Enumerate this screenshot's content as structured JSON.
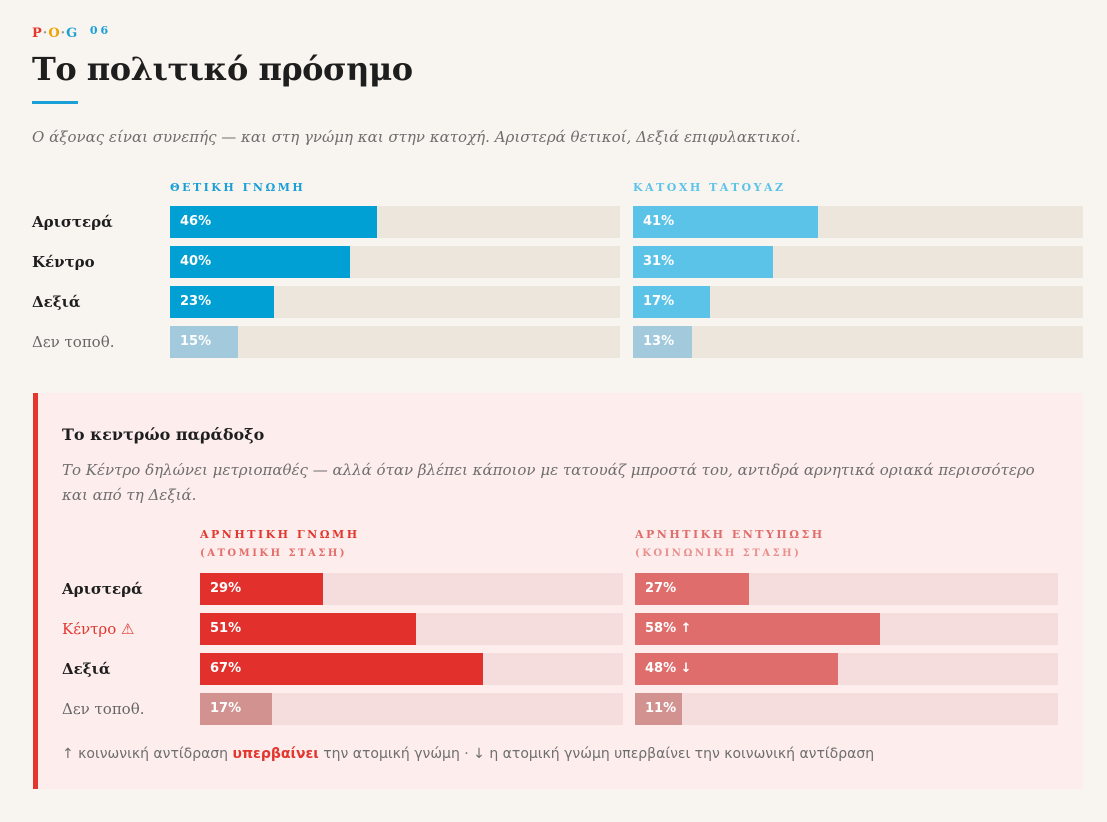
{
  "kicker": {
    "p": "P",
    "o": "O",
    "g": "G",
    "dot": "·",
    "num": "06"
  },
  "title": "Το πολιτικό πρόσημο",
  "subtitle": "Ο άξονας είναι συνεπής — και στη γνώμη και στην κατοχή. Αριστερά θετικοί, Δεξιά επιφυλακτικοί.",
  "chart_data": [
    {
      "type": "bar",
      "orientation": "horizontal",
      "title": "ΘΕΤΙΚΗ ΓΝΩΜΗ",
      "categories": [
        "Αριστερά",
        "Κέντρο",
        "Δεξιά",
        "Δεν τοποθ."
      ],
      "values": [
        46,
        40,
        23,
        15
      ],
      "labels": [
        "46%",
        "40%",
        "23%",
        "15%"
      ],
      "unit": "%",
      "xlim": [
        0,
        100
      ],
      "colors": [
        "#009fd4",
        "#009fd4",
        "#009fd4",
        "#a2c9dc"
      ]
    },
    {
      "type": "bar",
      "orientation": "horizontal",
      "title": "ΚΑΤΟΧΗ ΤΑΤΟΥΑΖ",
      "categories": [
        "Αριστερά",
        "Κέντρο",
        "Δεξιά",
        "Δεν τοποθ."
      ],
      "values": [
        41,
        31,
        17,
        13
      ],
      "labels": [
        "41%",
        "31%",
        "17%",
        "13%"
      ],
      "unit": "%",
      "xlim": [
        0,
        100
      ],
      "colors": [
        "#5cc3e8",
        "#5cc3e8",
        "#5cc3e8",
        "#a2c9dc"
      ]
    },
    {
      "type": "bar",
      "orientation": "horizontal",
      "title": "ΑΡΝΗΤΙΚΗ ΓΝΩΜΗ",
      "subtitle": "(ΑΤΟΜΙΚΗ ΣΤΑΣΗ)",
      "categories": [
        "Αριστερά",
        "Κέντρο",
        "Δεξιά",
        "Δεν τοποθ."
      ],
      "values": [
        29,
        51,
        67,
        17
      ],
      "labels": [
        "29%",
        "51%",
        "67%",
        "17%"
      ],
      "unit": "%",
      "xlim": [
        0,
        100
      ],
      "colors": [
        "#e2302c",
        "#e2302c",
        "#e2302c",
        "#d29290"
      ]
    },
    {
      "type": "bar",
      "orientation": "horizontal",
      "title": "ΑΡΝΗΤΙΚΗ ΕΝΤΥΠΩΣΗ",
      "subtitle": "(ΚΟΙΝΩΝΙΚΗ ΣΤΑΣΗ)",
      "categories": [
        "Αριστερά",
        "Κέντρο",
        "Δεξιά",
        "Δεν τοποθ."
      ],
      "values": [
        27,
        58,
        48,
        11
      ],
      "labels": [
        "27%",
        "58% ↑",
        "48% ↓",
        "11%"
      ],
      "unit": "%",
      "xlim": [
        0,
        100
      ],
      "colors": [
        "#df6d6b",
        "#df6d6b",
        "#df6d6b",
        "#d29290"
      ]
    }
  ],
  "colors": {
    "track_blue": "#ede6dc",
    "track_red": "#f4dddc"
  },
  "row_labels_top": [
    "Αριστερά",
    "Κέντρο",
    "Δεξιά",
    "Δεν τοποθ."
  ],
  "panel": {
    "title": "Το κεντρώο παράδοξο",
    "text": "Το Κέντρο δηλώνει μετριοπαθές — αλλά όταν βλέπει κάποιον με τατουάζ μπροστά του, αντιδρά αρνητικά οριακά περισσότερο και από τη Δεξιά.",
    "row_labels": [
      "Αριστερά",
      "Κέντρο ⚠",
      "Δεξιά",
      "Δεν τοποθ."
    ],
    "legend": {
      "part1": "↑ κοινωνική αντίδραση ",
      "emph": "υπερβαίνει",
      "part2": " την ατομική γνώμη  ·  ↓ η ατομική γνώμη υπερβαίνει την κοινωνική αντίδραση"
    }
  }
}
